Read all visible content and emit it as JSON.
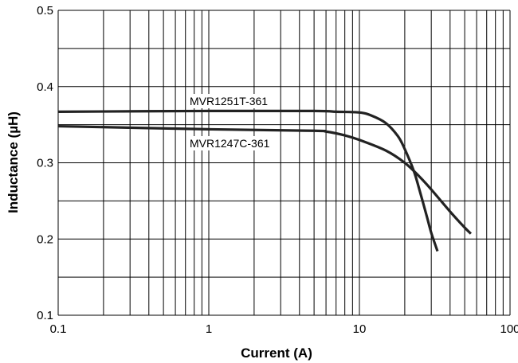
{
  "chart_data": {
    "type": "line",
    "x_scale": "log",
    "xlim": [
      0.1,
      100
    ],
    "ylim": [
      0.1,
      0.5
    ],
    "grid": true,
    "xlabel": "Current (A)",
    "ylabel": "Inductance (µH)",
    "x_ticks": [
      {
        "value": 0.1,
        "label": "0.1"
      },
      {
        "value": 1,
        "label": "1"
      },
      {
        "value": 10,
        "label": "10"
      },
      {
        "value": 100,
        "label": "100"
      }
    ],
    "y_ticks": [
      {
        "value": 0.1,
        "label": "0.1"
      },
      {
        "value": 0.2,
        "label": "0.2"
      },
      {
        "value": 0.3,
        "label": "0.3"
      },
      {
        "value": 0.4,
        "label": "0.4"
      },
      {
        "value": 0.5,
        "label": "0.5"
      }
    ],
    "series": [
      {
        "name": "MVR1251T-361",
        "x": [
          0.1,
          1,
          5,
          7,
          10,
          12,
          15,
          18,
          20,
          23,
          25,
          28,
          30,
          33
        ],
        "y": [
          0.367,
          0.368,
          0.368,
          0.367,
          0.366,
          0.362,
          0.352,
          0.335,
          0.318,
          0.289,
          0.265,
          0.23,
          0.208,
          0.184
        ]
      },
      {
        "name": "MVR1247C-361",
        "x": [
          0.1,
          1,
          5,
          6,
          8,
          10,
          15,
          20,
          25,
          30,
          40,
          50,
          55
        ],
        "y": [
          0.348,
          0.344,
          0.342,
          0.341,
          0.336,
          0.33,
          0.316,
          0.3,
          0.282,
          0.265,
          0.236,
          0.215,
          0.207
        ]
      }
    ]
  }
}
